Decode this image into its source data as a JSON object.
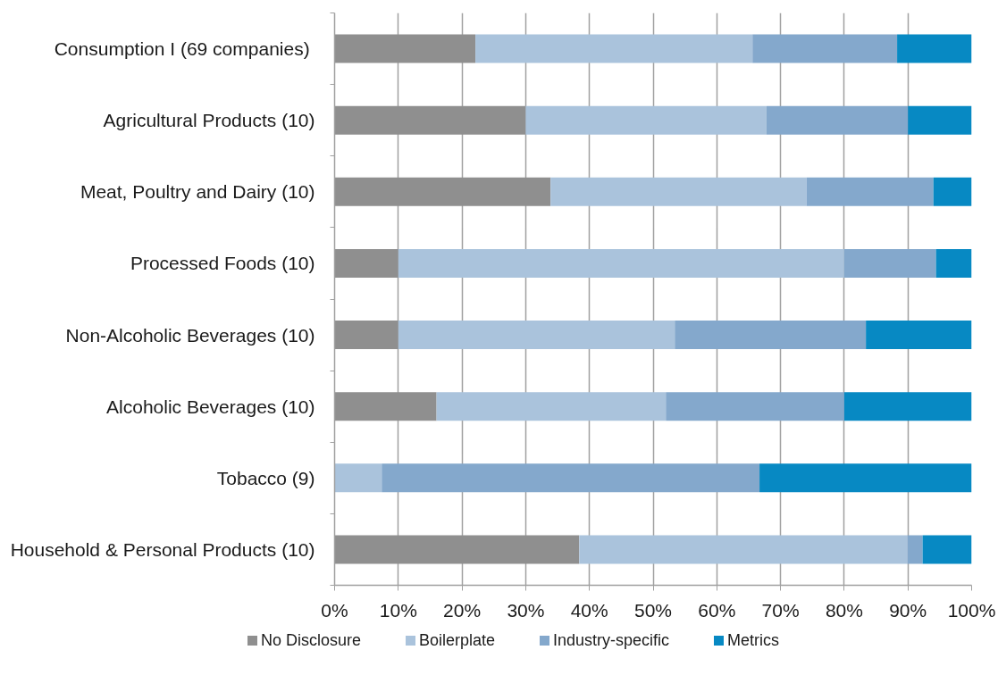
{
  "chart_data": {
    "type": "bar",
    "orientation": "horizontal",
    "stacked": true,
    "categories": [
      "Consumption I  (69 companies)",
      "Agricultural Products (10)",
      "Meat, Poultry and Dairy (10)",
      "Processed Foods (10)",
      "Non-Alcoholic Beverages (10)",
      "Alcoholic Beverages (10)",
      "Tobacco (9)",
      "Household & Personal Products (10)"
    ],
    "series": [
      {
        "name": "No Disclosure",
        "color": "#8f8f8f",
        "values": [
          22.1,
          30,
          33.9,
          10,
          10,
          16,
          0,
          38.4
        ]
      },
      {
        "name": "Boilerplate",
        "color": "#aac3dc",
        "values": [
          43.5,
          37.8,
          40.2,
          70,
          43.4,
          36,
          7.4,
          51.5
        ]
      },
      {
        "name": "Industry-specific",
        "color": "#84a8cc",
        "values": [
          22.7,
          22.2,
          19.9,
          14.4,
          30,
          28,
          59.3,
          2.4
        ]
      },
      {
        "name": "Metrics",
        "color": "#0789c3",
        "values": [
          11.7,
          10,
          6,
          5.6,
          16.6,
          20,
          33.3,
          7.7
        ]
      }
    ],
    "xlim": [
      0,
      100
    ],
    "xticks": [
      {
        "value": 0,
        "label": "0%"
      },
      {
        "value": 10,
        "label": "10%"
      },
      {
        "value": 20,
        "label": "20%"
      },
      {
        "value": 30,
        "label": "30%"
      },
      {
        "value": 40,
        "label": "40%"
      },
      {
        "value": 50,
        "label": "50%"
      },
      {
        "value": 60,
        "label": "60%"
      },
      {
        "value": 70,
        "label": "70%"
      },
      {
        "value": 80,
        "label": "80%"
      },
      {
        "value": 90,
        "label": "90%"
      },
      {
        "value": 100,
        "label": "100%"
      }
    ],
    "grid": "x",
    "legend": "bottom"
  }
}
